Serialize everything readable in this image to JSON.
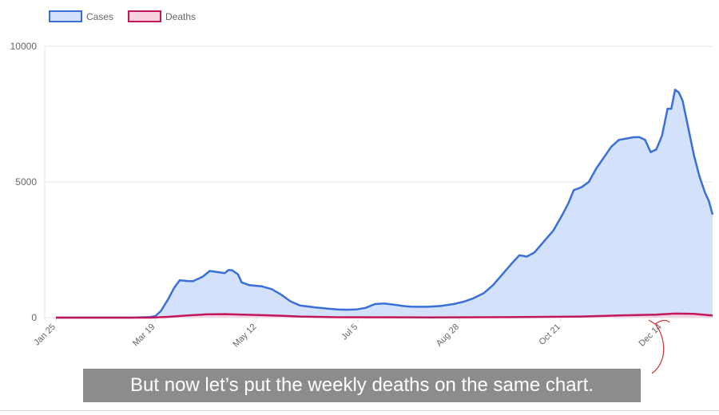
{
  "chart_data": {
    "type": "area",
    "legend_position": "top-left",
    "grid": true,
    "ylim": [
      0,
      10000
    ],
    "y_ticks": [
      0,
      5000,
      10000
    ],
    "x_ticks": [
      {
        "label": "Jan 25",
        "x": 0
      },
      {
        "label": "Mar 19",
        "x": 53
      },
      {
        "label": "May 12",
        "x": 107
      },
      {
        "label": "Jul 5",
        "x": 161
      },
      {
        "label": "Aug 28",
        "x": 215
      },
      {
        "label": "Oct 21",
        "x": 269
      },
      {
        "label": "Dec 14",
        "x": 323
      }
    ],
    "x_max": 350,
    "series": [
      {
        "name": "Cases",
        "color": "#3b6fd8",
        "fill": "#d3e1fb",
        "points": [
          [
            0,
            0
          ],
          [
            25,
            0
          ],
          [
            40,
            0
          ],
          [
            50,
            20
          ],
          [
            53,
            60
          ],
          [
            56,
            250
          ],
          [
            60,
            700
          ],
          [
            63,
            1100
          ],
          [
            66,
            1380
          ],
          [
            70,
            1350
          ],
          [
            73,
            1340
          ],
          [
            78,
            1500
          ],
          [
            82,
            1720
          ],
          [
            86,
            1680
          ],
          [
            90,
            1640
          ],
          [
            92,
            1760
          ],
          [
            94,
            1740
          ],
          [
            97,
            1600
          ],
          [
            99,
            1300
          ],
          [
            103,
            1200
          ],
          [
            110,
            1150
          ],
          [
            115,
            1050
          ],
          [
            120,
            850
          ],
          [
            125,
            600
          ],
          [
            130,
            450
          ],
          [
            138,
            380
          ],
          [
            145,
            330
          ],
          [
            150,
            300
          ],
          [
            155,
            290
          ],
          [
            160,
            300
          ],
          [
            165,
            360
          ],
          [
            170,
            500
          ],
          [
            175,
            520
          ],
          [
            180,
            480
          ],
          [
            185,
            430
          ],
          [
            190,
            400
          ],
          [
            198,
            400
          ],
          [
            205,
            430
          ],
          [
            212,
            500
          ],
          [
            218,
            600
          ],
          [
            222,
            700
          ],
          [
            228,
            900
          ],
          [
            233,
            1200
          ],
          [
            238,
            1600
          ],
          [
            243,
            2000
          ],
          [
            247,
            2300
          ],
          [
            251,
            2250
          ],
          [
            255,
            2400
          ],
          [
            260,
            2800
          ],
          [
            265,
            3200
          ],
          [
            270,
            3800
          ],
          [
            273,
            4200
          ],
          [
            276,
            4700
          ],
          [
            280,
            4800
          ],
          [
            284,
            5000
          ],
          [
            288,
            5500
          ],
          [
            292,
            5900
          ],
          [
            296,
            6300
          ],
          [
            300,
            6550
          ],
          [
            304,
            6600
          ],
          [
            308,
            6650
          ],
          [
            311,
            6650
          ],
          [
            314,
            6550
          ],
          [
            317,
            6100
          ],
          [
            320,
            6200
          ],
          [
            323,
            6700
          ],
          [
            326,
            7700
          ],
          [
            328,
            7700
          ],
          [
            330,
            8400
          ],
          [
            332,
            8300
          ],
          [
            334,
            8000
          ],
          [
            337,
            7000
          ],
          [
            340,
            6000
          ],
          [
            343,
            5200
          ],
          [
            346,
            4600
          ],
          [
            348,
            4300
          ],
          [
            350,
            3800
          ]
        ]
      },
      {
        "name": "Deaths",
        "color": "#c2185b",
        "fill": "#f6d2df",
        "points": [
          [
            0,
            0
          ],
          [
            50,
            0
          ],
          [
            60,
            30
          ],
          [
            70,
            80
          ],
          [
            80,
            120
          ],
          [
            90,
            130
          ],
          [
            100,
            110
          ],
          [
            110,
            90
          ],
          [
            120,
            70
          ],
          [
            130,
            40
          ],
          [
            150,
            15
          ],
          [
            200,
            10
          ],
          [
            250,
            20
          ],
          [
            280,
            40
          ],
          [
            300,
            80
          ],
          [
            320,
            110
          ],
          [
            330,
            150
          ],
          [
            340,
            140
          ],
          [
            350,
            80
          ]
        ]
      }
    ]
  },
  "caption": {
    "text": "But now let’s put the weekly deaths on the same chart."
  }
}
